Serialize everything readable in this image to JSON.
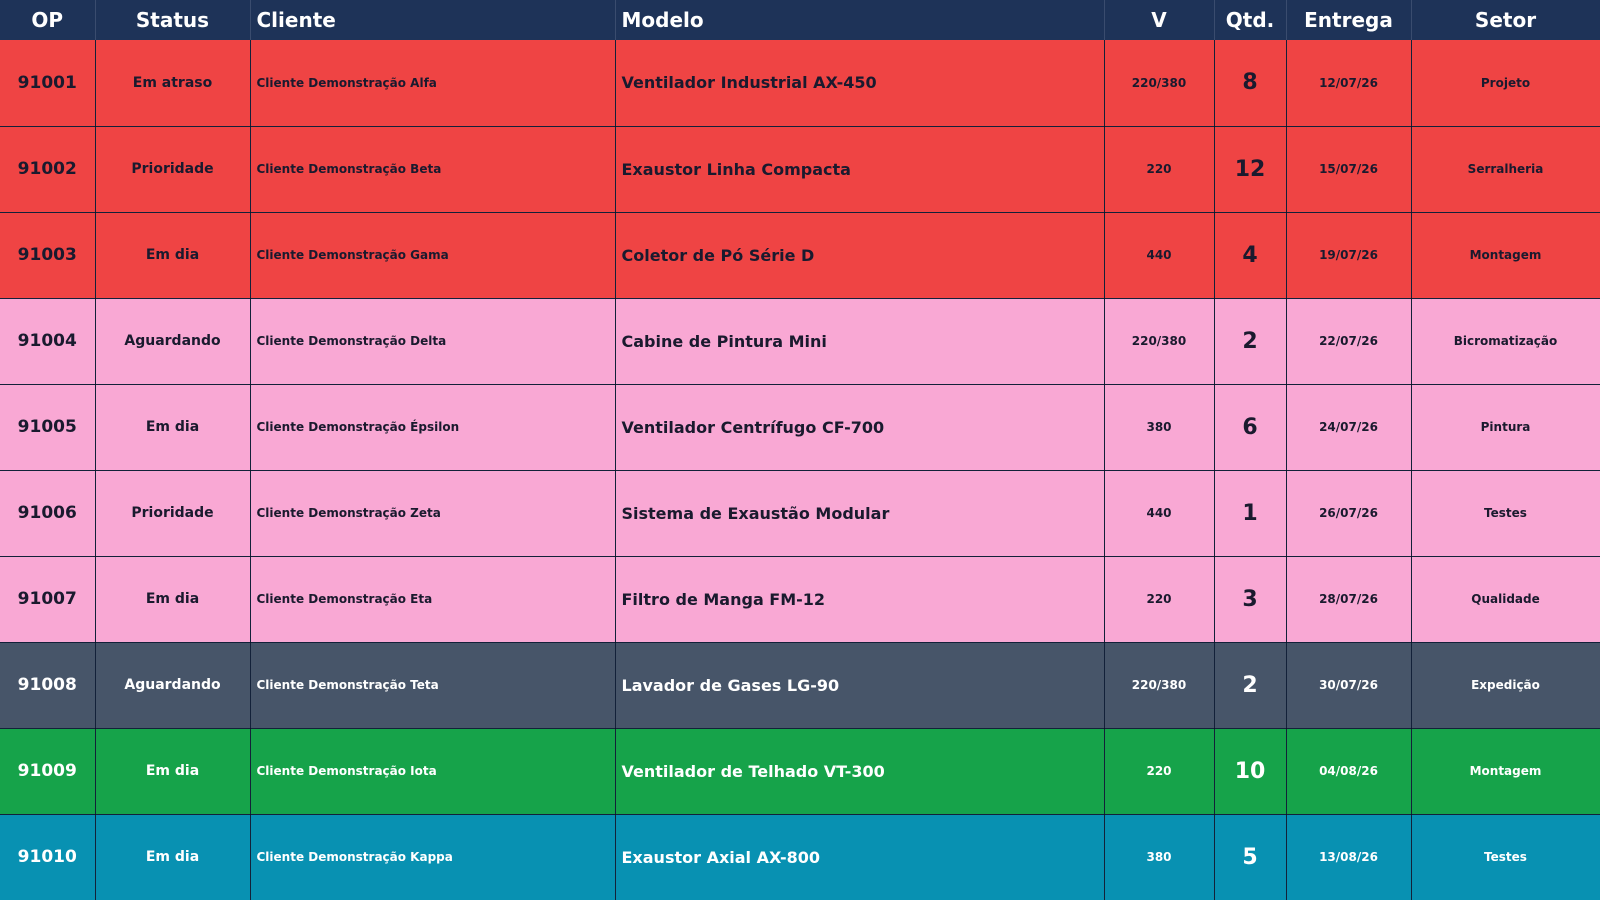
{
  "headers": {
    "op": "OP",
    "status": "Status",
    "cliente": "Cliente",
    "modelo": "Modelo",
    "v": "V",
    "qtd": "Qtd.",
    "entrega": "Entrega",
    "setor": "Setor"
  },
  "row_colors": {
    "red": "#ef4444",
    "pink": "#f9a8d4",
    "slate": "#475569",
    "green": "#16a34a",
    "blue": "#0891b2",
    "header": "#1e3358"
  },
  "rows": [
    {
      "color": "red",
      "op": "91001",
      "status": "Em atraso",
      "cliente": "Cliente Demonstração Alfa",
      "modelo": "Ventilador Industrial AX-450",
      "v": "220/380",
      "qtd": "8",
      "entrega": "12/07/26",
      "setor": "Projeto"
    },
    {
      "color": "red",
      "op": "91002",
      "status": "Prioridade",
      "cliente": "Cliente Demonstração Beta",
      "modelo": "Exaustor Linha Compacta",
      "v": "220",
      "qtd": "12",
      "entrega": "15/07/26",
      "setor": "Serralheria"
    },
    {
      "color": "red",
      "op": "91003",
      "status": "Em dia",
      "cliente": "Cliente Demonstração Gama",
      "modelo": "Coletor de Pó Série D",
      "v": "440",
      "qtd": "4",
      "entrega": "19/07/26",
      "setor": "Montagem"
    },
    {
      "color": "pink",
      "op": "91004",
      "status": "Aguardando",
      "cliente": "Cliente Demonstração Delta",
      "modelo": "Cabine de Pintura Mini",
      "v": "220/380",
      "qtd": "2",
      "entrega": "22/07/26",
      "setor": "Bicromatização"
    },
    {
      "color": "pink",
      "op": "91005",
      "status": "Em dia",
      "cliente": "Cliente Demonstração Épsilon",
      "modelo": "Ventilador Centrífugo CF-700",
      "v": "380",
      "qtd": "6",
      "entrega": "24/07/26",
      "setor": "Pintura"
    },
    {
      "color": "pink",
      "op": "91006",
      "status": "Prioridade",
      "cliente": "Cliente Demonstração Zeta",
      "modelo": "Sistema de Exaustão Modular",
      "v": "440",
      "qtd": "1",
      "entrega": "26/07/26",
      "setor": "Testes"
    },
    {
      "color": "pink",
      "op": "91007",
      "status": "Em dia",
      "cliente": "Cliente Demonstração Eta",
      "modelo": "Filtro de Manga FM-12",
      "v": "220",
      "qtd": "3",
      "entrega": "28/07/26",
      "setor": "Qualidade"
    },
    {
      "color": "slate",
      "op": "91008",
      "status": "Aguardando",
      "cliente": "Cliente Demonstração Teta",
      "modelo": "Lavador de Gases LG-90",
      "v": "220/380",
      "qtd": "2",
      "entrega": "30/07/26",
      "setor": "Expedição"
    },
    {
      "color": "green",
      "op": "91009",
      "status": "Em dia",
      "cliente": "Cliente Demonstração Iota",
      "modelo": "Ventilador de Telhado VT-300",
      "v": "220",
      "qtd": "10",
      "entrega": "04/08/26",
      "setor": "Montagem"
    },
    {
      "color": "blue",
      "op": "91010",
      "status": "Em dia",
      "cliente": "Cliente Demonstração Kappa",
      "modelo": "Exaustor Axial AX-800",
      "v": "380",
      "qtd": "5",
      "entrega": "13/08/26",
      "setor": "Testes"
    }
  ]
}
